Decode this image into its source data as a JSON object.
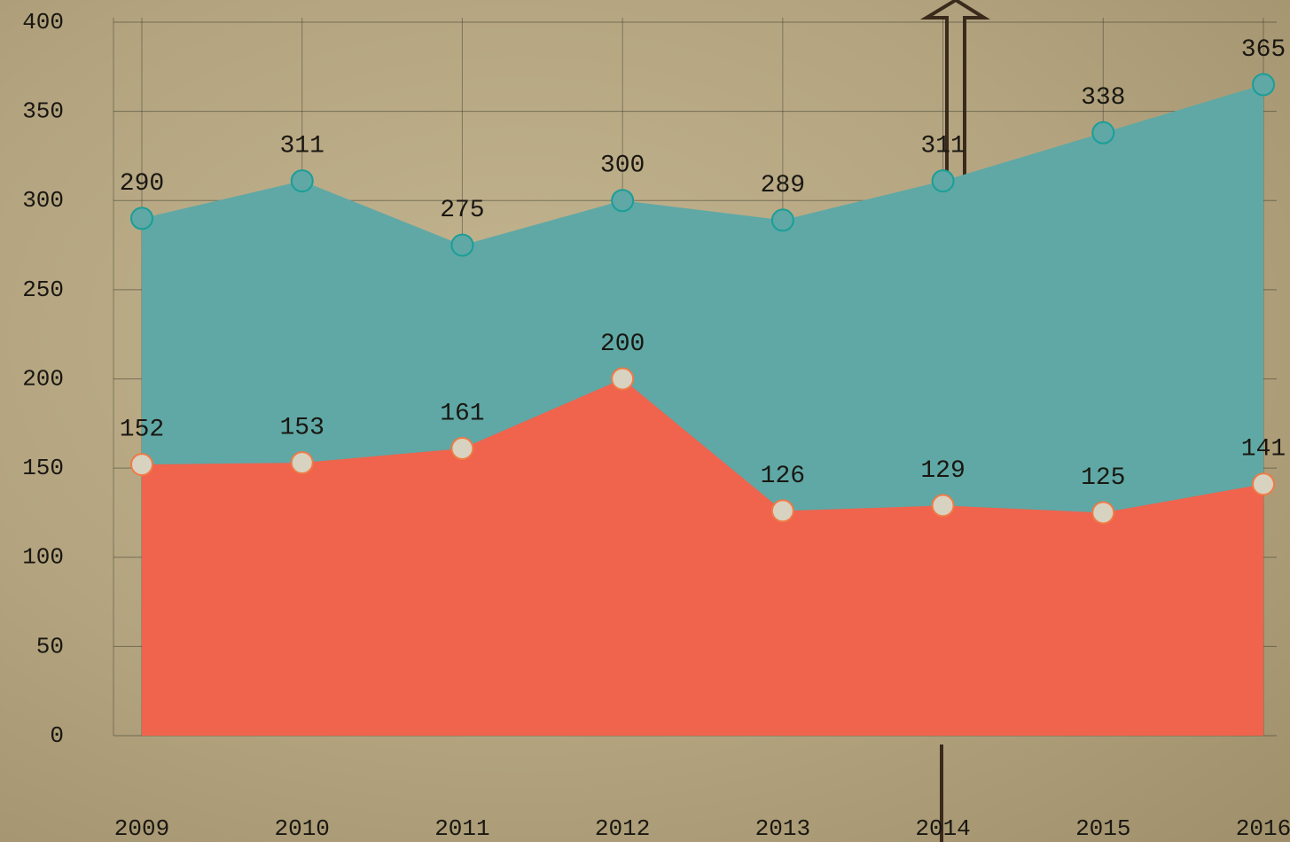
{
  "chart_data": {
    "type": "area",
    "categories": [
      "2009",
      "2010",
      "2011",
      "2012",
      "2013",
      "2014",
      "2015",
      "2016"
    ],
    "series": [
      {
        "color": "#5fa8a5",
        "values": [
          290,
          311,
          275,
          300,
          289,
          311,
          338,
          365
        ]
      },
      {
        "color": "#f0634d",
        "values": [
          152,
          153,
          161,
          200,
          126,
          129,
          125,
          141
        ]
      }
    ],
    "ylim": [
      0,
      400
    ],
    "yticks": [
      0,
      50,
      100,
      150,
      200,
      250,
      300,
      350,
      400
    ],
    "grid": true
  }
}
